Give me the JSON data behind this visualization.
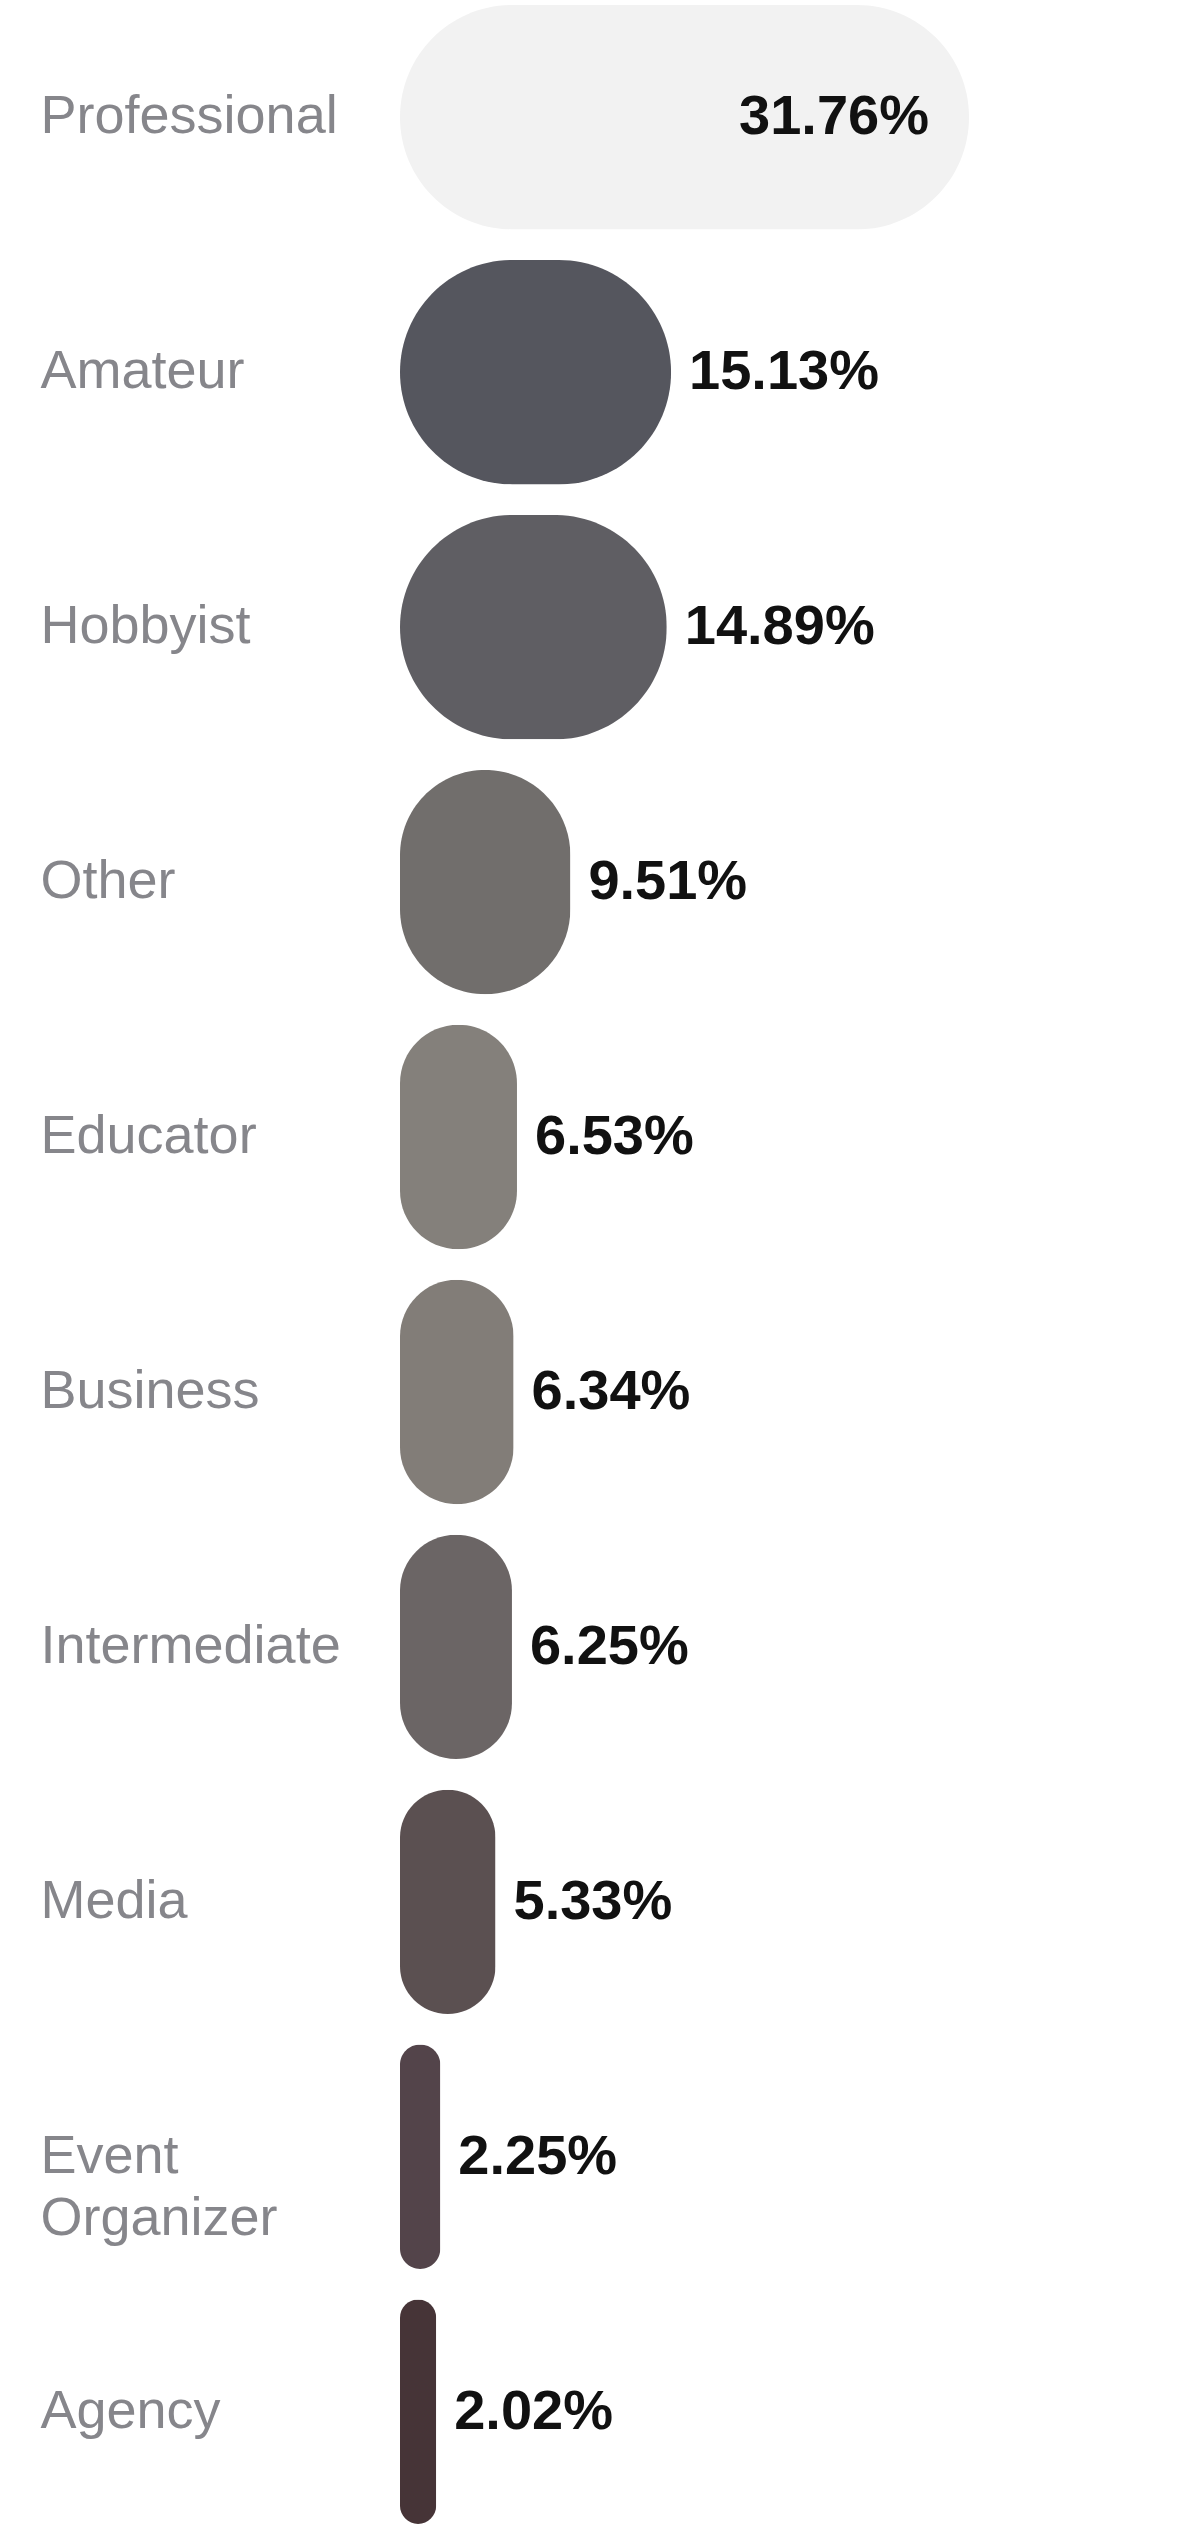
{
  "chart_data": {
    "type": "bar",
    "orientation": "horizontal",
    "categories": [
      "Professional",
      "Amateur",
      "Hobbyist",
      "Other",
      "Educator",
      "Business",
      "Intermediate",
      "Media",
      "Event Organizer",
      "Agency"
    ],
    "values": [
      31.76,
      15.13,
      14.89,
      9.51,
      6.53,
      6.34,
      6.25,
      5.33,
      2.25,
      2.02
    ],
    "colors": [
      "#f2f2f2",
      "#55565e",
      "#5f5e63",
      "#716e6c",
      "#84807b",
      "#827d78",
      "#6b6565",
      "#5b5051",
      "#53444a",
      "#463437"
    ],
    "value_labels": [
      "31.76%",
      "15.13%",
      "14.89%",
      "9.51%",
      "6.53%",
      "6.34%",
      "6.25%",
      "5.33%",
      "2.25%",
      "2.02%"
    ],
    "tick_labels": "y"
  }
}
